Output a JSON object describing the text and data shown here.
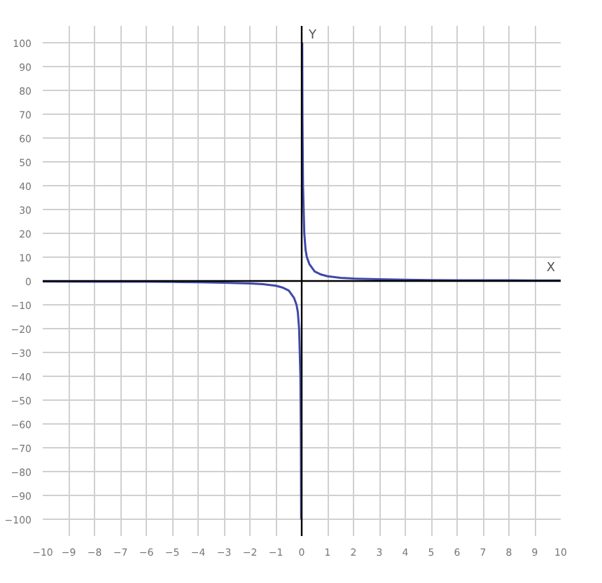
{
  "chart_data": {
    "type": "line",
    "xlabel": "X",
    "ylabel": "Y",
    "x": [
      -10,
      -8,
      -6,
      -5,
      -4,
      -3,
      -2,
      -1.5,
      -1,
      -0.75,
      -0.5,
      -0.3,
      -0.2,
      -0.15,
      -0.1,
      -0.05,
      -0.03,
      -0.02,
      null,
      0.02,
      0.03,
      0.05,
      0.1,
      0.15,
      0.2,
      0.3,
      0.5,
      0.75,
      1,
      1.5,
      2,
      3,
      4,
      5,
      6,
      8,
      10
    ],
    "series": [
      {
        "color": "#3f48a8",
        "values": [
          -0.2,
          -0.3,
          -0.3,
          -0.4,
          -0.5,
          -0.7,
          -1,
          -1.3,
          -2,
          -2.7,
          -4,
          -7,
          -10,
          -13,
          -20,
          -40,
          -67,
          -100,
          null,
          100,
          67,
          40,
          20,
          13,
          10,
          7,
          4,
          2.7,
          2,
          1.3,
          1,
          0.7,
          0.5,
          0.4,
          0.3,
          0.3,
          0.2
        ]
      }
    ],
    "xlim": [
      -10,
      10
    ],
    "ylim": [
      -107,
      107
    ],
    "xticks": [
      -10,
      -9,
      -8,
      -7,
      -6,
      -5,
      -4,
      -3,
      -2,
      -1,
      0,
      1,
      2,
      3,
      4,
      5,
      6,
      7,
      8,
      9,
      10
    ],
    "yticks": [
      -100,
      -90,
      -80,
      -70,
      -60,
      -50,
      -40,
      -30,
      -20,
      -10,
      0,
      10,
      20,
      30,
      40,
      50,
      60,
      70,
      80,
      90,
      100
    ],
    "grid": true,
    "marker": "none",
    "line_style": "solid"
  }
}
